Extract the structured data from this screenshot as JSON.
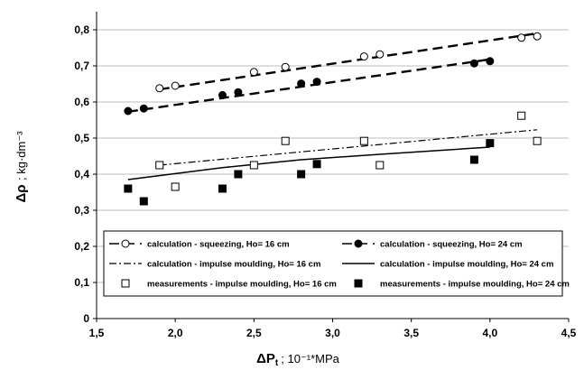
{
  "chart_data": {
    "type": "scatter",
    "xlabel": {
      "main": "ΔP",
      "sub": "t",
      "unit": "; 10⁻¹*MPa"
    },
    "ylabel": {
      "main": "Δρ",
      "unit": "; kg·dm⁻³"
    },
    "xlim": [
      1.5,
      4.5
    ],
    "ylim": [
      0,
      0.85
    ],
    "xticks": [
      "1,5",
      "2,0",
      "2,5",
      "3,0",
      "3,5",
      "4,0",
      "4,5"
    ],
    "yticks": [
      "0",
      "0,1",
      "0,2",
      "0,3",
      "0,4",
      "0,5",
      "0,6",
      "0,7",
      "0,8"
    ],
    "grid": "horizontal",
    "legend_position": "bottom-inside",
    "series": [
      {
        "name": "calculation - squeezing, Ho= 16 cm",
        "style": "dashed-open-circles",
        "x": [
          1.9,
          2.0,
          2.5,
          2.7,
          3.2,
          3.3,
          4.2,
          4.3
        ],
        "y": [
          0.638,
          0.645,
          0.683,
          0.697,
          0.726,
          0.732,
          0.778,
          0.782
        ],
        "fit": [
          [
            1.9,
            0.635
          ],
          [
            4.3,
            0.79
          ]
        ]
      },
      {
        "name": "calculation - squeezing, Ho= 24 cm",
        "style": "dashed-filled-circles",
        "x": [
          1.7,
          1.8,
          2.3,
          2.4,
          2.8,
          2.9,
          3.9,
          4.0
        ],
        "y": [
          0.575,
          0.582,
          0.619,
          0.627,
          0.651,
          0.656,
          0.707,
          0.713
        ],
        "fit": [
          [
            1.7,
            0.573
          ],
          [
            4.0,
            0.718
          ]
        ]
      },
      {
        "name": "calculation - impulse moulding, Ho= 16 cm",
        "style": "dash-dot-line",
        "x": [
          1.9,
          4.3
        ],
        "y": [
          0.425,
          0.523
        ]
      },
      {
        "name": "calculation - impulse moulding, Ho= 24 cm",
        "style": "solid-line",
        "x": [
          1.7,
          2.3,
          2.8,
          3.3,
          4.0
        ],
        "y": [
          0.385,
          0.418,
          0.44,
          0.455,
          0.475
        ]
      },
      {
        "name": "measurements - impulse moulding, Ho= 16 cm",
        "style": "open-squares",
        "x": [
          1.9,
          2.0,
          2.5,
          2.7,
          3.2,
          3.3,
          4.2,
          4.3
        ],
        "y": [
          0.425,
          0.365,
          0.425,
          0.492,
          0.492,
          0.425,
          0.562,
          0.492
        ]
      },
      {
        "name": "measurements - impulse moulding, Ho= 24 cm",
        "style": "filled-squares",
        "x": [
          1.7,
          1.8,
          2.3,
          2.4,
          2.8,
          2.9,
          3.9,
          4.0
        ],
        "y": [
          0.36,
          0.325,
          0.36,
          0.4,
          0.4,
          0.428,
          0.44,
          0.486
        ]
      }
    ]
  }
}
